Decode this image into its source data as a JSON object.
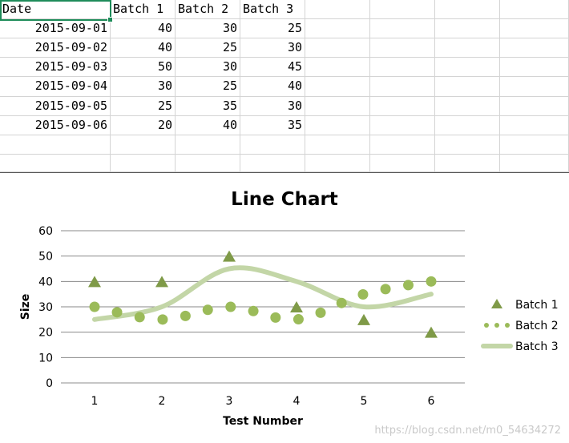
{
  "sheet": {
    "headers": [
      "Date",
      "Batch 1",
      "Batch 2",
      "Batch 3"
    ],
    "rows": [
      [
        "2015-09-01",
        "40",
        "30",
        "25"
      ],
      [
        "2015-09-02",
        "40",
        "25",
        "30"
      ],
      [
        "2015-09-03",
        "50",
        "30",
        "45"
      ],
      [
        "2015-09-04",
        "30",
        "25",
        "40"
      ],
      [
        "2015-09-05",
        "25",
        "35",
        "30"
      ],
      [
        "2015-09-06",
        "20",
        "40",
        "35"
      ]
    ]
  },
  "chart_data": {
    "type": "line",
    "title": "Line Chart",
    "xlabel": "Test Number",
    "ylabel": "Size",
    "categories": [
      "1",
      "2",
      "3",
      "4",
      "5",
      "6"
    ],
    "ylim": [
      0,
      60
    ],
    "yticks": [
      "0",
      "10",
      "20",
      "30",
      "40",
      "50",
      "60"
    ],
    "grid": true,
    "legend_position": "right",
    "series": [
      {
        "name": "Batch 1",
        "values": [
          40,
          40,
          50,
          30,
          25,
          20
        ],
        "style": "triangle-markers",
        "color": "#7f9a48"
      },
      {
        "name": "Batch 2",
        "values": [
          30,
          25,
          30,
          25,
          35,
          40
        ],
        "style": "dotted-smooth",
        "color": "#9bbb59"
      },
      {
        "name": "Batch 3",
        "values": [
          25,
          30,
          45,
          40,
          30,
          35
        ],
        "style": "thick-smooth",
        "color": "#c3d6a7"
      }
    ]
  },
  "watermark": "https://blog.csdn.net/m0_54634272"
}
